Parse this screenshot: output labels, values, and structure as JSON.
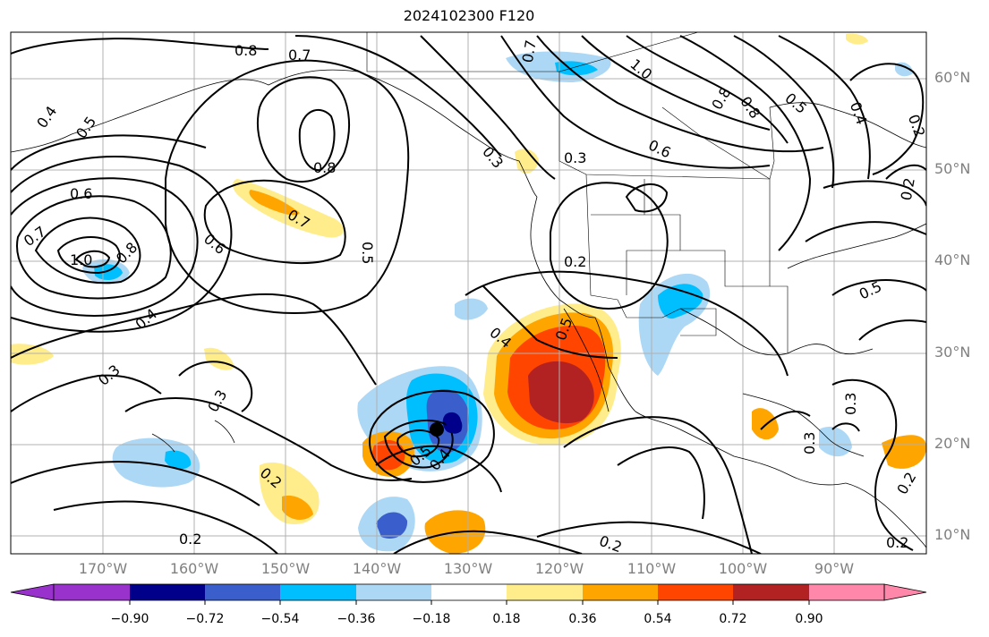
{
  "title": "2024102300 F120",
  "latitude_labels": [
    "60°N",
    "50°N",
    "40°N",
    "30°N",
    "20°N",
    "10°N"
  ],
  "longitude_labels": [
    "170°W",
    "160°W",
    "150°W",
    "140°W",
    "130°W",
    "120°W",
    "110°W",
    "100°W",
    "90°W"
  ],
  "contour_labels": [
    "0.8",
    "0.7",
    "0.4",
    "0.5",
    "0.8",
    "0.6",
    "0.7",
    "1.0",
    "0.8",
    "0.7",
    "0.6",
    "0.5",
    "0.4",
    "0.3",
    "0.3",
    "0.2",
    "0.2",
    "0.5",
    "0.4",
    "0.5",
    "0.4",
    "0.3",
    "0.2",
    "0.2",
    "0.3",
    "0.3",
    "0.2",
    "0.2",
    "0.7",
    "1.0",
    "0.8",
    "0.6",
    "0.3",
    "0.5",
    "0.4",
    "0.2",
    "0.2",
    "0.8",
    "0.5"
  ],
  "colorbar": {
    "tick_labels": [
      "−0.90",
      "−0.72",
      "−0.54",
      "−0.36",
      "−0.18",
      "0.18",
      "0.36",
      "0.54",
      "0.72",
      "0.90"
    ],
    "colors": [
      "#9932cc",
      "#00008b",
      "#3a5fcd",
      "#00bfff",
      "#add8f5",
      "#ffffff",
      "#ffec8b",
      "#ffa500",
      "#ff4500",
      "#b22222",
      "#ff88aa"
    ]
  }
}
